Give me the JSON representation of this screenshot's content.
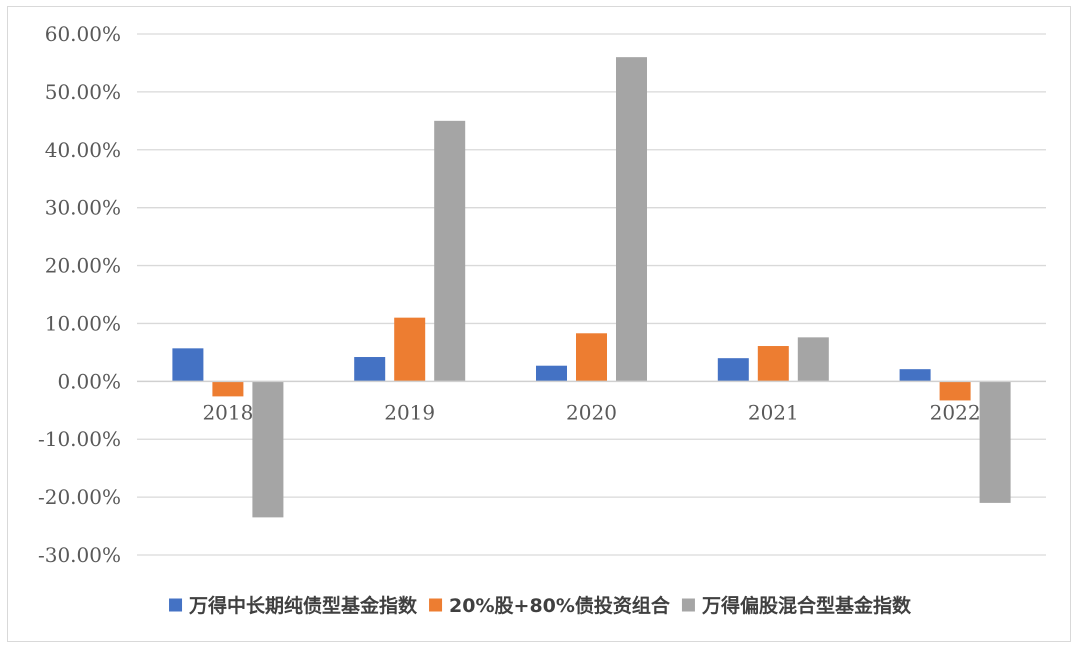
{
  "chart_data": {
    "type": "bar",
    "categories": [
      "2018",
      "2019",
      "2020",
      "2021",
      "2022"
    ],
    "series": [
      {
        "name": "万得中长期纯债型基金指数",
        "color": "#4472C4",
        "values": [
          5.7,
          4.2,
          2.7,
          4.0,
          2.1
        ]
      },
      {
        "name": "20%股+80%债投资组合",
        "color": "#ED7D31",
        "values": [
          -2.6,
          11.0,
          8.3,
          6.1,
          -3.3
        ]
      },
      {
        "name": "万得偏股混合型基金指数",
        "color": "#A5A5A5",
        "values": [
          -23.5,
          45.0,
          56.0,
          7.6,
          -21.0
        ]
      }
    ],
    "ylim": [
      -30,
      60
    ],
    "yticks": [
      "60.00%",
      "50.00%",
      "40.00%",
      "30.00%",
      "20.00%",
      "10.00%",
      "0.00%",
      "-10.00%",
      "-20.00%",
      "-30.00%"
    ],
    "ytick_values": [
      60,
      50,
      40,
      30,
      20,
      10,
      0,
      -10,
      -20,
      -30
    ],
    "grid": true,
    "legend_position": "bottom",
    "title": "",
    "xlabel": "",
    "ylabel": ""
  }
}
